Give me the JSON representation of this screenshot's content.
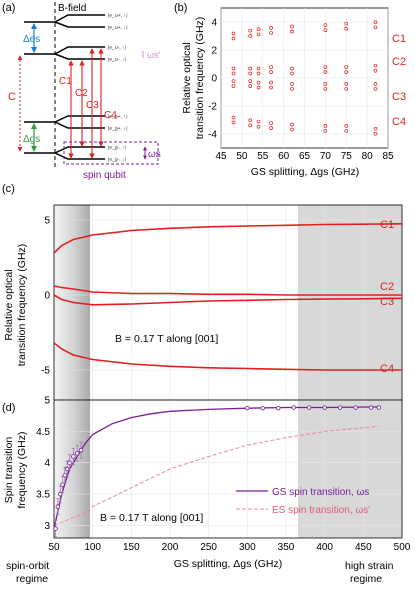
{
  "panel_a": {
    "label": "(a)",
    "bfield": "B-field",
    "delta_es": "Δes",
    "delta_gs": "Δgs",
    "c_label": "C",
    "transitions": [
      "C1",
      "C2",
      "C3",
      "C4"
    ],
    "omega_s_prime": "ωs′",
    "omega_s": "ωs",
    "spin_qubit": "spin qubit",
    "colors": {
      "es": "#1a7fd4",
      "gs": "#2a9d3a",
      "red": "#e02020",
      "purple": "#7a1f9a"
    }
  },
  "panel_b": {
    "label": "(b)",
    "ylabel_1": "Relative optical",
    "ylabel_2": "transition frequency (GHz)",
    "xlabel": "GS splitting, Δgs (GHz)",
    "xticks": [
      "45",
      "50",
      "55",
      "60",
      "65",
      "70",
      "75",
      "80",
      "85"
    ],
    "yticks": [
      "4",
      "2",
      "0",
      "-2",
      "-4"
    ],
    "series_labels": [
      "C1",
      "C2",
      "C3",
      "C4"
    ]
  },
  "panel_c": {
    "label": "(c)",
    "ylabel_1": "Relative optical",
    "ylabel_2": "transition frequency (GHz)",
    "yticks": [
      "5",
      "0",
      "-5"
    ],
    "annotation": "B = 0.17 T along [001]",
    "series_labels": [
      "C1",
      "C2",
      "C3",
      "C4"
    ]
  },
  "panel_d": {
    "label": "(d)",
    "ylabel_1": "Spin transition",
    "ylabel_2": "frequency (GHz)",
    "yticks": [
      "5",
      "4.5",
      "4",
      "3.5",
      "3"
    ],
    "xticks": [
      "50",
      "100",
      "150",
      "200",
      "250",
      "300",
      "350",
      "400",
      "450",
      "500"
    ],
    "xlabel": "GS splitting, Δgs (GHz)",
    "annotation": "B = 0.17 T along [001]",
    "legend_gs": "GS spin transition, ωs",
    "legend_es": "ES spin transition, ωs′",
    "regime_left_1": "spin-orbit",
    "regime_left_2": "regime",
    "regime_right_1": "high strain",
    "regime_right_2": "regime"
  },
  "chart_data": [
    {
      "type": "scatter",
      "xlabel": "GS splitting, Δgs (GHz)",
      "ylabel": "Relative optical transition frequency (GHz)",
      "xlim": [
        45,
        85
      ],
      "ylim": [
        -5,
        5
      ],
      "x": [
        48,
        52,
        54,
        57,
        62,
        70,
        75,
        82
      ],
      "series": [
        {
          "name": "C1",
          "values": [
            3.0,
            3.2,
            3.3,
            3.4,
            3.5,
            3.6,
            3.7,
            3.8
          ]
        },
        {
          "name": "C2",
          "values": [
            0.5,
            0.5,
            0.5,
            0.6,
            0.5,
            0.6,
            0.6,
            0.7
          ]
        },
        {
          "name": "C3",
          "values": [
            -0.4,
            -0.4,
            -0.5,
            -0.5,
            -0.6,
            -0.6,
            -0.6,
            -0.6
          ]
        },
        {
          "name": "C4",
          "values": [
            -3.0,
            -3.2,
            -3.3,
            -3.4,
            -3.5,
            -3.6,
            -3.6,
            -3.8
          ]
        }
      ]
    },
    {
      "type": "line",
      "ylabel": "Relative optical transition frequency (GHz)",
      "xlim": [
        50,
        500
      ],
      "ylim": [
        -7,
        6
      ],
      "x": [
        50,
        60,
        75,
        100,
        150,
        200,
        250,
        300,
        350,
        400,
        450,
        500
      ],
      "series": [
        {
          "name": "C1",
          "values": [
            2.8,
            3.3,
            3.7,
            4.0,
            4.3,
            4.45,
            4.55,
            4.6,
            4.65,
            4.7,
            4.72,
            4.75
          ]
        },
        {
          "name": "C2",
          "values": [
            0.6,
            0.5,
            0.4,
            0.2,
            0.1,
            0.1,
            0.05,
            0.05,
            0.0,
            0.0,
            0.0,
            0.0
          ]
        },
        {
          "name": "C3",
          "values": [
            0.0,
            -0.3,
            -0.5,
            -0.65,
            -0.6,
            -0.5,
            -0.4,
            -0.35,
            -0.3,
            -0.27,
            -0.25,
            -0.22
          ]
        },
        {
          "name": "C4",
          "values": [
            -3.2,
            -3.6,
            -4.0,
            -4.3,
            -4.6,
            -4.75,
            -4.85,
            -4.9,
            -4.95,
            -5.0,
            -5.0,
            -5.0
          ]
        }
      ]
    },
    {
      "type": "line",
      "xlabel": "GS splitting, Δgs (GHz)",
      "ylabel": "Spin transition frequency (GHz)",
      "xlim": [
        50,
        500
      ],
      "ylim": [
        2.8,
        5.0
      ],
      "x": [
        50,
        60,
        70,
        80,
        90,
        100,
        125,
        150,
        175,
        200,
        250,
        300,
        350,
        400,
        470
      ],
      "series": [
        {
          "name": "GS spin transition, ωs",
          "values": [
            2.95,
            3.5,
            3.9,
            4.1,
            4.3,
            4.45,
            4.62,
            4.72,
            4.78,
            4.82,
            4.85,
            4.87,
            4.88,
            4.88,
            4.89
          ]
        },
        {
          "name": "ES spin transition, ωs′",
          "values": [
            3.0,
            3.05,
            3.1,
            3.15,
            3.2,
            3.3,
            3.45,
            3.6,
            3.75,
            3.9,
            4.1,
            4.28,
            4.4,
            4.5,
            4.58
          ]
        }
      ],
      "measured": {
        "x": [
          52,
          55,
          58,
          61,
          64,
          67,
          70,
          75,
          80,
          85,
          300,
          320,
          340,
          360,
          380,
          400,
          420,
          440,
          460,
          470
        ],
        "y": [
          2.95,
          3.3,
          3.5,
          3.65,
          3.8,
          3.9,
          4.0,
          4.1,
          4.15,
          4.2,
          4.87,
          4.87,
          4.87,
          4.88,
          4.88,
          4.88,
          4.88,
          4.88,
          4.88,
          4.88
        ]
      }
    }
  ]
}
